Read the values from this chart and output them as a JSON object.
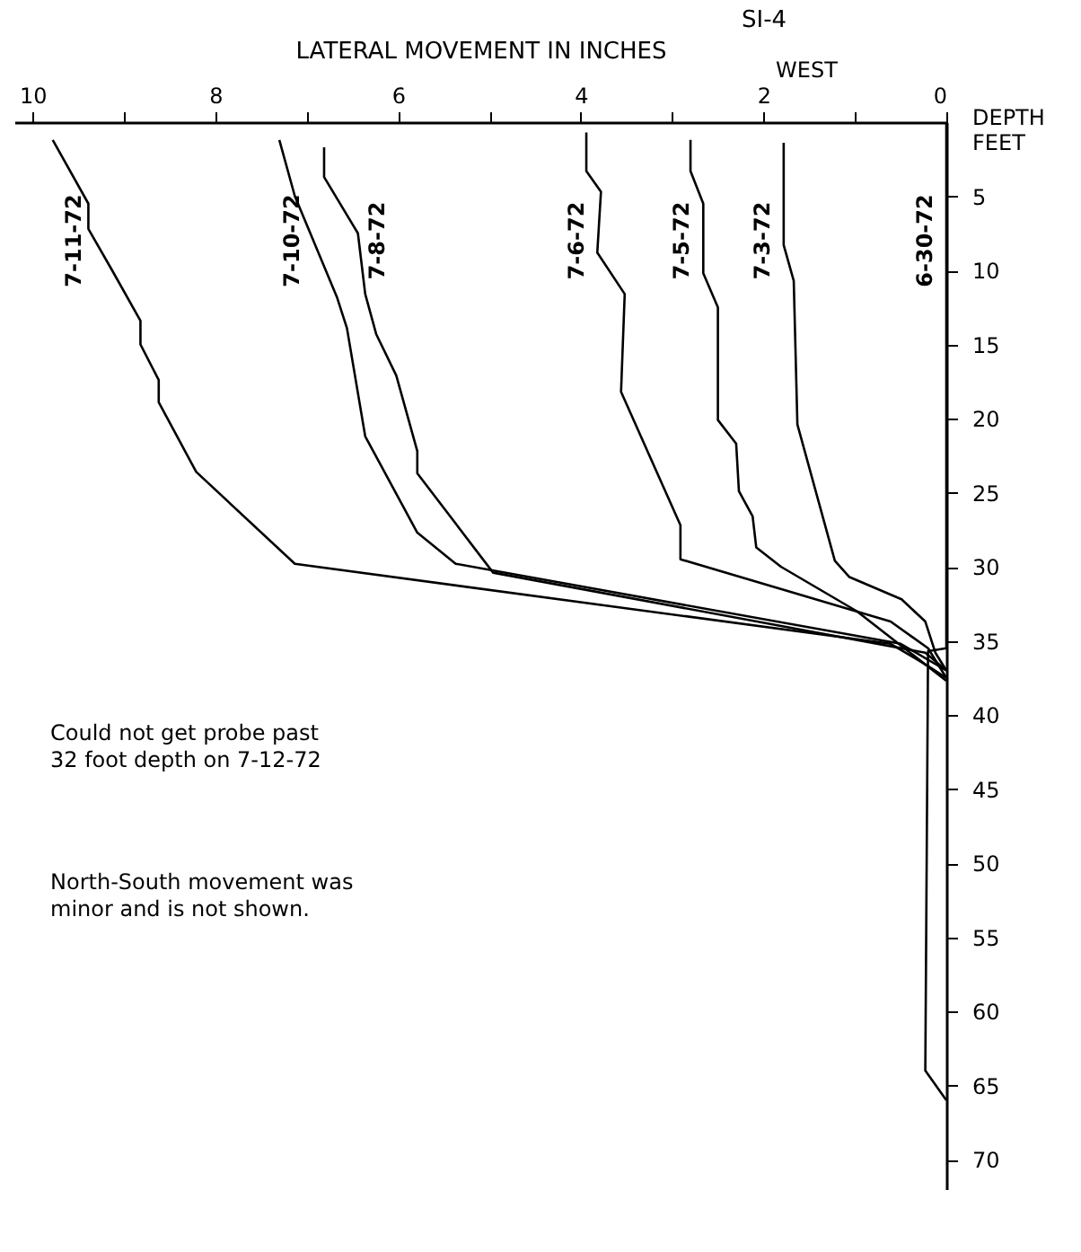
{
  "chart_data": {
    "type": "line",
    "title": "SI-4",
    "xlabel": "LATERAL MOVEMENT IN INCHES",
    "ylabel": "DEPTH FEET",
    "annotations": [
      "WEST",
      "Could not get probe past\n32 foot depth on 7-12-72",
      "North-South movement was\nminor and is not shown."
    ],
    "xlim": [
      10.2,
      0
    ],
    "xticks": [
      0,
      {
        "value": 1,
        "label": null
      },
      2,
      {
        "value": 3,
        "label": null
      },
      4,
      {
        "value": 5,
        "label": null
      },
      6,
      {
        "value": 7,
        "label": null
      },
      8,
      {
        "value": 9,
        "label": null
      },
      10
    ],
    "ylim": [
      72,
      0
    ],
    "yticks": [
      5,
      10,
      15,
      20,
      25,
      30,
      35,
      40,
      45,
      50,
      55,
      60,
      65,
      70
    ],
    "grid": false,
    "legend": false,
    "marker": "none",
    "line_style": "solid",
    "series": [
      {
        "name": "7-11-72",
        "color": "#000000",
        "x": [
          9.78,
          9.39,
          9.39,
          9.13,
          8.82,
          8.82,
          8.62,
          8.62,
          8.21,
          7.13,
          0.61,
          0.2,
          0
        ],
        "values": [
          1.2,
          5.5,
          7.2,
          10,
          13.4,
          15,
          17.4,
          18.9,
          23.6,
          29.8,
          35.2,
          36.7,
          37.5
        ]
      },
      {
        "name": "7-10-72",
        "color": "#000000",
        "x": [
          7.3,
          7.13,
          6.67,
          6.56,
          6.36,
          5.79,
          5.37,
          0.5,
          0
        ],
        "values": [
          1.2,
          5,
          11.8,
          13.9,
          21.2,
          27.7,
          29.8,
          35.2,
          37
        ]
      },
      {
        "name": "7-8-72",
        "color": "#000000",
        "x": [
          6.81,
          6.81,
          6.44,
          6.36,
          6.24,
          6.02,
          5.79,
          5.79,
          4.96,
          0.23,
          0
        ],
        "values": [
          1.7,
          3.7,
          7.5,
          11.6,
          14.3,
          17.1,
          22.2,
          23.7,
          30.4,
          35.8,
          37
        ]
      },
      {
        "name": "7-6-72",
        "color": "#000000",
        "x": [
          3.94,
          3.94,
          3.78,
          3.82,
          3.52,
          3.56,
          2.91,
          2.91,
          0.61,
          0.2,
          0
        ],
        "values": [
          0.7,
          3.3,
          4.7,
          8.8,
          11.6,
          18.2,
          27.2,
          29.5,
          33.7,
          35.5,
          37.5
        ]
      },
      {
        "name": "7-5-72",
        "color": "#000000",
        "x": [
          2.8,
          2.8,
          2.66,
          2.66,
          2.5,
          2.5,
          2.5,
          2.3,
          2.27,
          2.12,
          2.08,
          1.81,
          0.98,
          0
        ],
        "values": [
          1.2,
          3.3,
          5.5,
          10.2,
          12.5,
          13.1,
          20.1,
          21.7,
          24.9,
          26.6,
          28.7,
          30,
          33,
          37.7
        ]
      },
      {
        "name": "7-3-72",
        "color": "#000000",
        "x": [
          1.78,
          1.78,
          1.67,
          1.63,
          1.22,
          1.06,
          0.49,
          0.23,
          0.12,
          0
        ],
        "values": [
          1.4,
          8.3,
          10.7,
          20.4,
          29.6,
          30.7,
          32.2,
          33.7,
          35.8,
          37
        ]
      },
      {
        "name": "6-30-72",
        "color": "#000000",
        "x": [
          0,
          0,
          0.2,
          0.23,
          0
        ],
        "values": [
          0,
          35.5,
          35.7,
          64,
          66
        ]
      }
    ]
  }
}
